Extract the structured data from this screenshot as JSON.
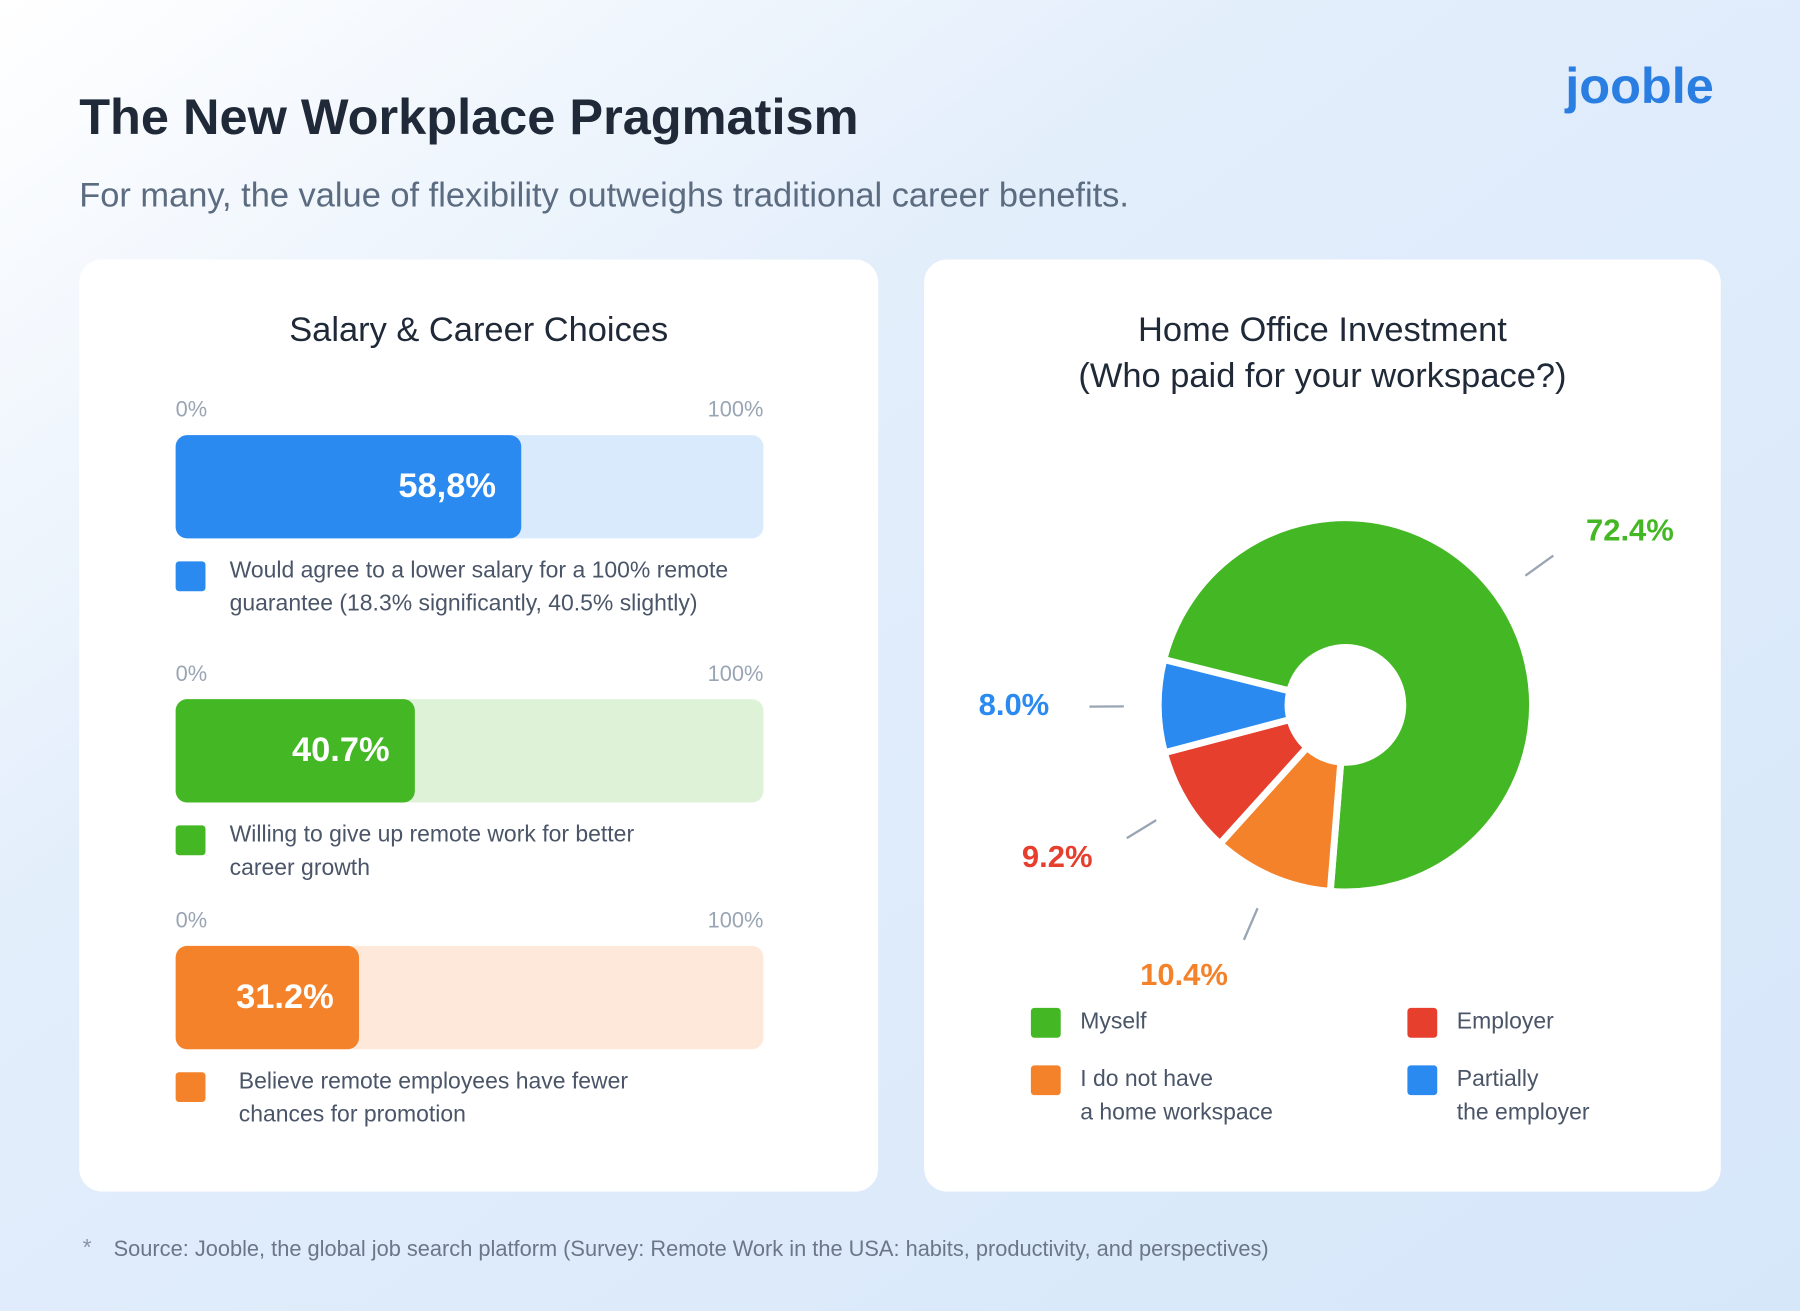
{
  "header": {
    "title": "The New Workplace Pragmatism",
    "subtitle": "For many, the value of flexibility outweighs traditional career benefits.",
    "logo": "jooble"
  },
  "chart_data": [
    {
      "type": "bar",
      "orientation": "horizontal",
      "title": "Salary & Career Choices",
      "categories": [
        "Would agree to a lower salary for a 100% remote\nguarantee (18.3% significantly, 40.5% slightly)",
        "Willing to give up remote work for better\ncareer growth",
        "Believe remote employees have fewer\nchances for promotion"
      ],
      "values": [
        58.8,
        40.7,
        31.2
      ],
      "value_labels": [
        "58,8%",
        "40.7%",
        "31.2%"
      ],
      "colors": [
        "#2a8af0",
        "#44b824",
        "#f4822a"
      ],
      "xlim": [
        0,
        100
      ],
      "xticks": [
        {
          "value": 0,
          "label": "0%"
        },
        {
          "value": 100,
          "label": "100%"
        }
      ]
    },
    {
      "type": "pie",
      "title": "Home Office Investment\n(Who paid for your workspace?)",
      "categories": [
        "Myself",
        "I do not have\na home workspace",
        "Employer",
        "Partially\nthe employer"
      ],
      "values": [
        72.4,
        10.4,
        9.2,
        8.0
      ],
      "value_labels": [
        "72.4%",
        "10.4%",
        "9.2%",
        "8.0%"
      ],
      "colors": [
        "#44b824",
        "#f4822a",
        "#e63f2e",
        "#2a8af0"
      ]
    }
  ],
  "footnote": {
    "marker": "*",
    "text": "Source: Jooble, the global job search platform (Survey: Remote Work in the USA: habits, productivity, and perspectives)"
  }
}
